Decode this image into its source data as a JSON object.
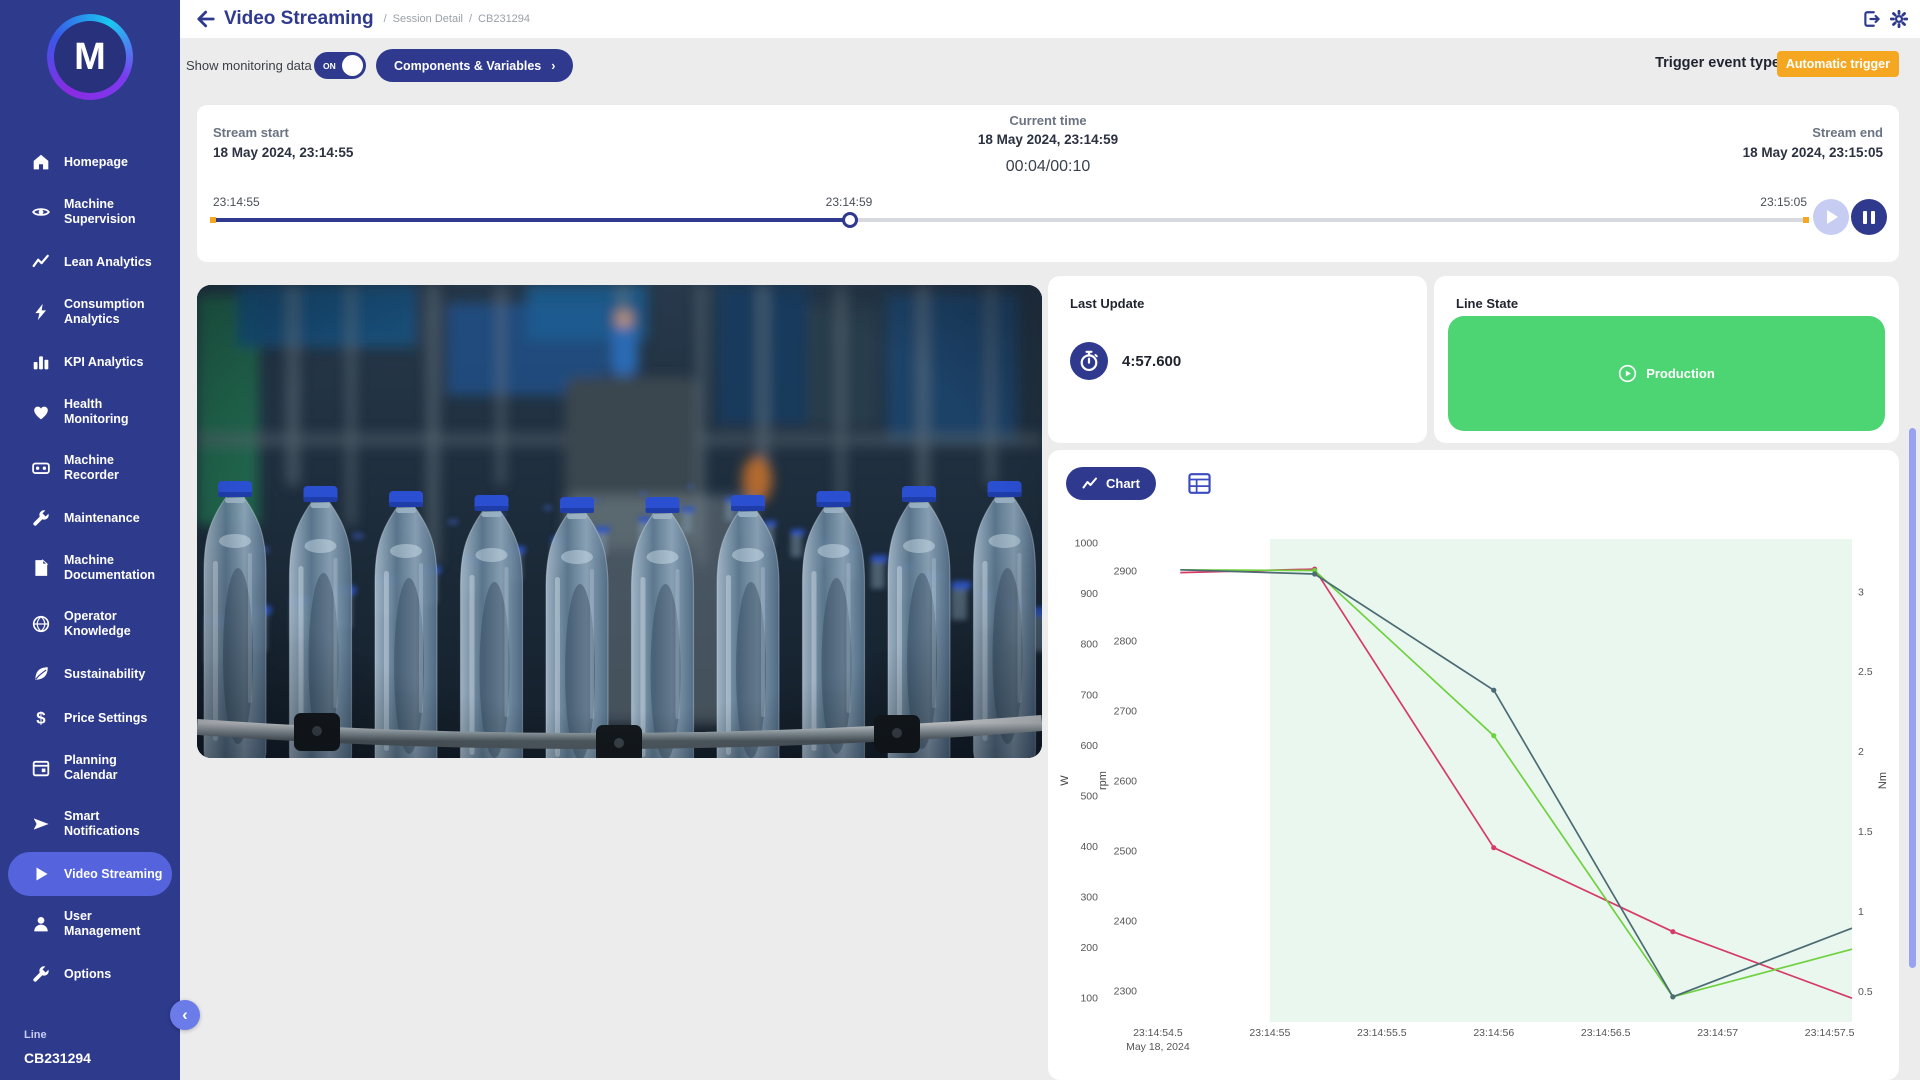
{
  "app": {
    "accent": "#2f3a8f",
    "orange": "#f6a722",
    "green": "#4ed573",
    "sidebar_bg": "#2e3a8c",
    "active_item_bg": "#5564dd"
  },
  "sidebar": {
    "logo_letter": "M",
    "items": [
      {
        "label": "Homepage",
        "icon": "home-icon",
        "active": false
      },
      {
        "label": "Machine Supervision",
        "icon": "eye-icon",
        "active": false
      },
      {
        "label": "Lean Analytics",
        "icon": "trend-icon",
        "active": false
      },
      {
        "label": "Consumption Analytics",
        "icon": "bolt-icon",
        "active": false
      },
      {
        "label": "KPI Analytics",
        "icon": "bars-icon",
        "active": false
      },
      {
        "label": "Health Monitoring",
        "icon": "heart-icon",
        "active": false
      },
      {
        "label": "Machine Recorder",
        "icon": "recorder-icon",
        "active": false
      },
      {
        "label": "Maintenance",
        "icon": "wrench-icon",
        "active": false
      },
      {
        "label": "Machine Documentation",
        "icon": "document-icon",
        "active": false
      },
      {
        "label": "Operator Knowledge",
        "icon": "globe-icon",
        "active": false
      },
      {
        "label": "Sustainability",
        "icon": "leaf-icon",
        "active": false
      },
      {
        "label": "Price Settings",
        "icon": "dollar-icon",
        "active": false
      },
      {
        "label": "Planning Calendar",
        "icon": "calendar-icon",
        "active": false
      },
      {
        "label": "Smart Notifications",
        "icon": "send-icon",
        "active": false
      },
      {
        "label": "Video Streaming",
        "icon": "play-icon",
        "active": true
      },
      {
        "label": "User Management",
        "icon": "user-icon",
        "active": false
      },
      {
        "label": "Options",
        "icon": "wrench-icon",
        "active": false
      }
    ],
    "footer": {
      "label": "Line",
      "value": "CB231294"
    }
  },
  "header": {
    "title": "Video Streaming",
    "breadcrumb_sep": "/",
    "breadcrumbs": [
      "Session Detail",
      "CB231294"
    ]
  },
  "controls": {
    "show_monitoring_label": "Show monitoring data",
    "toggle_state": "ON",
    "components_button": "Components & Variables",
    "components_chevron": "›",
    "trigger_label": "Trigger event type",
    "trigger_value": "Automatic trigger"
  },
  "timeline": {
    "stream_start_label": "Stream start",
    "stream_start_value": "18 May 2024, 23:14:55",
    "current_time_label": "Current time",
    "current_time_value": "18 May 2024, 23:14:59",
    "elapsed": "00:04/00:10",
    "stream_end_label": "Stream end",
    "stream_end_value": "18 May 2024, 23:15:05",
    "slider": {
      "start_label": "23:14:55",
      "current_label": "23:14:59",
      "end_label": "23:15:05",
      "progress_pct": 40
    }
  },
  "cards": {
    "last_update": {
      "title": "Last Update",
      "value": "4:57.600",
      "icon": "stopwatch-icon"
    },
    "line_state": {
      "title": "Line State",
      "state": "Production",
      "icon": "play-circle-icon",
      "state_color": "#4ed573"
    }
  },
  "chart": {
    "button_label": "Chart"
  },
  "chart_data": {
    "type": "line",
    "title": "",
    "x_axis": {
      "unit": "time (seconds after 23:14:00, May 18 2024)",
      "domain": [
        54.42,
        57.6
      ],
      "ticks": [
        {
          "t": 54.5,
          "label": "23:14:54.5",
          "sublabel": "May 18, 2024"
        },
        {
          "t": 55.0,
          "label": "23:14:55"
        },
        {
          "t": 55.5,
          "label": "23:14:55.5"
        },
        {
          "t": 56.0,
          "label": "23:14:56"
        },
        {
          "t": 56.5,
          "label": "23:14:56.5"
        },
        {
          "t": 57.0,
          "label": "23:14:57"
        },
        {
          "t": 57.5,
          "label": "23:14:57.5"
        }
      ]
    },
    "y_axes": [
      {
        "name": "W",
        "side": "left",
        "ticks": [
          100,
          200,
          300,
          400,
          500,
          600,
          700,
          800,
          900,
          1000
        ],
        "top": 1008,
        "bottom": 53
      },
      {
        "name": "rpm",
        "side": "left",
        "ticks": [
          2300,
          2400,
          2500,
          2600,
          2700,
          2800,
          2900
        ],
        "top": 2946,
        "bottom": 2256
      },
      {
        "name": "Nm",
        "side": "right",
        "ticks": [
          0.5,
          1,
          1.5,
          2,
          2.5,
          3
        ],
        "top": 3.33,
        "bottom": 0.31
      }
    ],
    "band": {
      "from": 55.0,
      "to": 57.6,
      "color": "#e9f7ef",
      "meaning": "production period"
    },
    "grid": false,
    "legend": false,
    "series": [
      {
        "name": "series-red",
        "color": "#d63a66",
        "scale": "rpm",
        "points": [
          [
            54.6,
            2898
          ],
          [
            55.2,
            2903
          ],
          [
            56.0,
            2505
          ],
          [
            56.8,
            2385
          ],
          [
            57.6,
            2290
          ]
        ]
      },
      {
        "name": "series-green",
        "color": "#6fd13f",
        "scale": "rpm",
        "points": [
          [
            54.6,
            2902
          ],
          [
            55.2,
            2901
          ],
          [
            56.0,
            2665
          ],
          [
            56.8,
            2292
          ],
          [
            57.6,
            2360
          ]
        ]
      },
      {
        "name": "series-slate",
        "color": "#4d6b73",
        "scale": "rpm",
        "points": [
          [
            54.6,
            2902
          ],
          [
            55.2,
            2896
          ],
          [
            56.0,
            2730
          ],
          [
            56.8,
            2292
          ],
          [
            57.6,
            2390
          ]
        ]
      }
    ]
  }
}
